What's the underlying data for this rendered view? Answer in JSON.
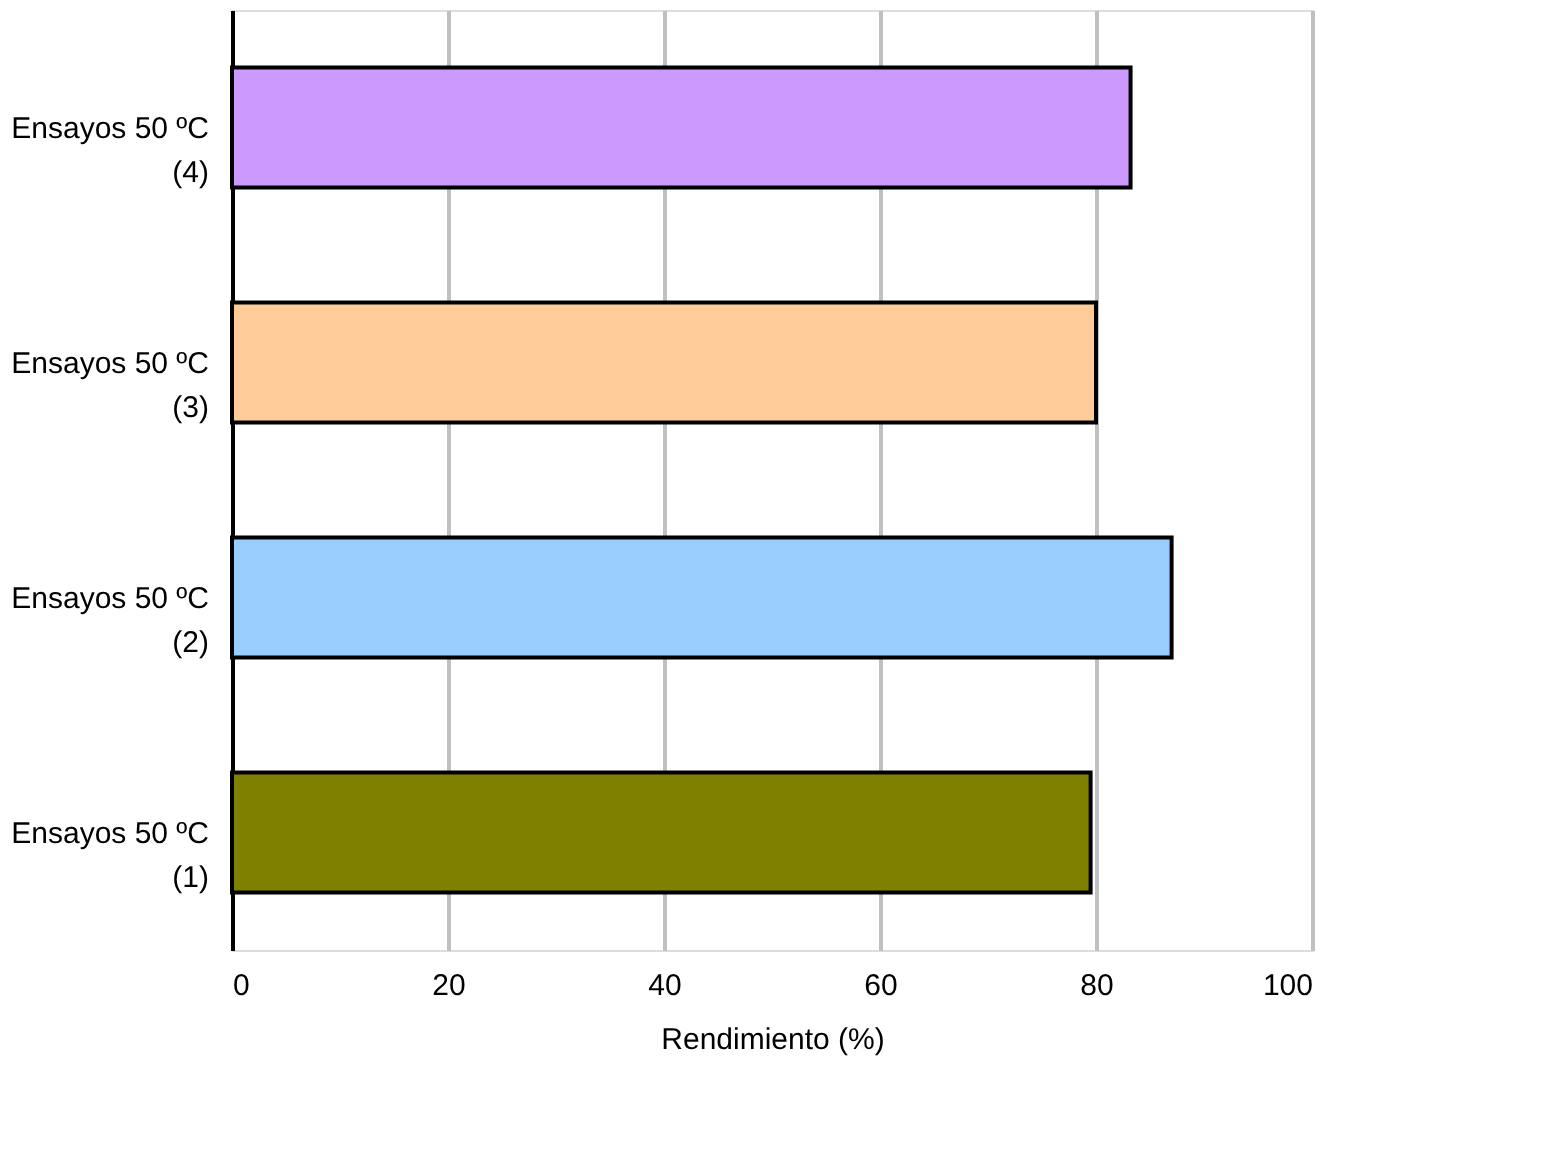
{
  "chart_data": {
    "type": "bar",
    "orientation": "horizontal",
    "categories": [
      "Ensayos 50 ºC\n(4)",
      "Ensayos 50 ºC\n(3)",
      "Ensayos 50 ºC\n(2)",
      "Ensayos 50 ºC\n(1)"
    ],
    "values": [
      83.2,
      80,
      87,
      79.5
    ],
    "colors": [
      "#cc99ff",
      "#ffcc99",
      "#99ccff",
      "#808000"
    ],
    "xlabel": "Rendimiento (%)",
    "xlim": [
      0,
      100
    ],
    "xticks": [
      0,
      20,
      40,
      60,
      80,
      100
    ],
    "grid": "x"
  }
}
